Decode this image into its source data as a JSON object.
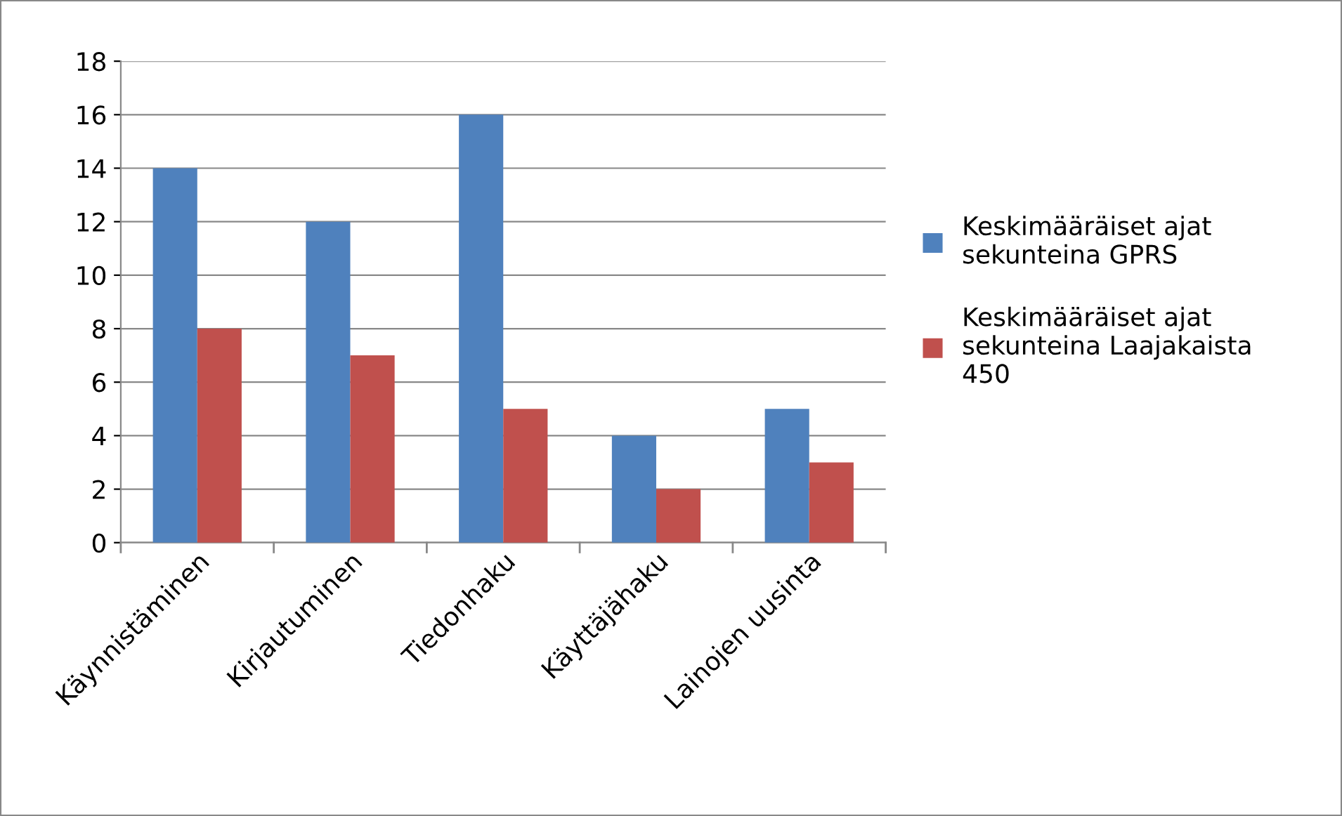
{
  "chart_data": {
    "type": "bar",
    "categories": [
      "Käynnistäminen",
      "Kirjautuminen",
      "Tiedonhaku",
      "Käyttäjähaku",
      "Lainojen uusinta"
    ],
    "series": [
      {
        "name": "Keskimääräiset ajat sekunteina GPRS",
        "color": "#4f81bd",
        "values": [
          14,
          12,
          16,
          4,
          5
        ]
      },
      {
        "name": "Keskimääräiset ajat sekunteina Laajakaista 450",
        "color": "#c0504d",
        "values": [
          8,
          7,
          5,
          2,
          3
        ]
      }
    ],
    "ylim": [
      0,
      18
    ],
    "yticks": [
      0,
      2,
      4,
      6,
      8,
      10,
      12,
      14,
      16,
      18
    ],
    "grid": "y",
    "legend": "right"
  }
}
